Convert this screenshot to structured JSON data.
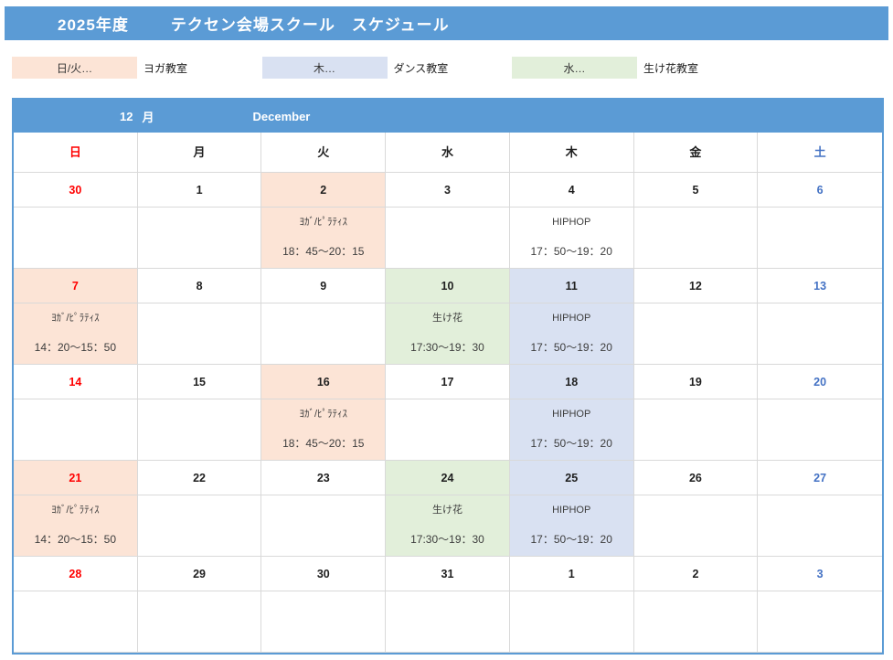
{
  "title": {
    "year": "2025年度",
    "main": "テクセン会場スクール　スケジュール"
  },
  "legend": [
    {
      "swatch_label": "日/火…",
      "class_label": "ヨガ教室",
      "color": "#FCE4D6"
    },
    {
      "swatch_label": "木…",
      "class_label": "ダンス教室",
      "color": "#D9E1F2"
    },
    {
      "swatch_label": "水…",
      "class_label": "生け花教室",
      "color": "#E2EFDA"
    }
  ],
  "month_header": {
    "number": "12",
    "suffix": "月",
    "english": "December"
  },
  "weekdays": [
    {
      "label": "日",
      "type": "sun"
    },
    {
      "label": "月",
      "type": "wd"
    },
    {
      "label": "火",
      "type": "wd"
    },
    {
      "label": "水",
      "type": "wd"
    },
    {
      "label": "木",
      "type": "wd"
    },
    {
      "label": "金",
      "type": "wd"
    },
    {
      "label": "土",
      "type": "sat"
    }
  ],
  "weeks": [
    {
      "days": [
        {
          "date": "30",
          "type": "sun",
          "bg": "none",
          "event": null
        },
        {
          "date": "1",
          "type": "wd",
          "bg": "none",
          "event": null
        },
        {
          "date": "2",
          "type": "wd",
          "bg": "yoga",
          "event": {
            "name": "ﾖｶﾞ/ﾋﾟﾗﾃｨｽ",
            "time": "18：45～20：15"
          }
        },
        {
          "date": "3",
          "type": "wd",
          "bg": "none",
          "event": null
        },
        {
          "date": "4",
          "type": "wd",
          "bg": "none",
          "event": {
            "name": "HIPHOP",
            "time": "17：50～19：20"
          }
        },
        {
          "date": "5",
          "type": "wd",
          "bg": "none",
          "event": null
        },
        {
          "date": "6",
          "type": "sat",
          "bg": "none",
          "event": null
        }
      ]
    },
    {
      "days": [
        {
          "date": "7",
          "type": "sun",
          "bg": "yoga",
          "event": {
            "name": "ﾖｶﾞ/ﾋﾟﾗﾃｨｽ",
            "time": "14：20～15：50"
          }
        },
        {
          "date": "8",
          "type": "wd",
          "bg": "none",
          "event": null
        },
        {
          "date": "9",
          "type": "wd",
          "bg": "none",
          "event": null
        },
        {
          "date": "10",
          "type": "wd",
          "bg": "flower",
          "event": {
            "name": "生け花",
            "time": "17:30～19：30"
          }
        },
        {
          "date": "11",
          "type": "wd",
          "bg": "dance",
          "event": {
            "name": "HIPHOP",
            "time": "17：50～19：20"
          }
        },
        {
          "date": "12",
          "type": "wd",
          "bg": "none",
          "event": null
        },
        {
          "date": "13",
          "type": "sat",
          "bg": "none",
          "event": null
        }
      ]
    },
    {
      "days": [
        {
          "date": "14",
          "type": "sun",
          "bg": "none",
          "event": null
        },
        {
          "date": "15",
          "type": "wd",
          "bg": "none",
          "event": null
        },
        {
          "date": "16",
          "type": "wd",
          "bg": "yoga",
          "event": {
            "name": "ﾖｶﾞ/ﾋﾟﾗﾃｨｽ",
            "time": "18：45～20：15"
          }
        },
        {
          "date": "17",
          "type": "wd",
          "bg": "none",
          "event": null
        },
        {
          "date": "18",
          "type": "wd",
          "bg": "dance",
          "event": {
            "name": "HIPHOP",
            "time": "17：50～19：20"
          }
        },
        {
          "date": "19",
          "type": "wd",
          "bg": "none",
          "event": null
        },
        {
          "date": "20",
          "type": "sat",
          "bg": "none",
          "event": null
        }
      ]
    },
    {
      "days": [
        {
          "date": "21",
          "type": "sun",
          "bg": "yoga",
          "event": {
            "name": "ﾖｶﾞ/ﾋﾟﾗﾃｨｽ",
            "time": "14：20～15：50"
          }
        },
        {
          "date": "22",
          "type": "wd",
          "bg": "none",
          "event": null
        },
        {
          "date": "23",
          "type": "wd",
          "bg": "none",
          "event": null
        },
        {
          "date": "24",
          "type": "wd",
          "bg": "flower",
          "event": {
            "name": "生け花",
            "time": "17:30～19：30"
          }
        },
        {
          "date": "25",
          "type": "wd",
          "bg": "dance",
          "event": {
            "name": "HIPHOP",
            "time": "17：50～19：20"
          }
        },
        {
          "date": "26",
          "type": "wd",
          "bg": "none",
          "event": null
        },
        {
          "date": "27",
          "type": "sat",
          "bg": "none",
          "event": null
        }
      ]
    },
    {
      "days": [
        {
          "date": "28",
          "type": "sun",
          "bg": "none",
          "event": null
        },
        {
          "date": "29",
          "type": "wd",
          "bg": "none",
          "event": null
        },
        {
          "date": "30",
          "type": "wd",
          "bg": "none",
          "event": null
        },
        {
          "date": "31",
          "type": "wd",
          "bg": "none",
          "event": null
        },
        {
          "date": "1",
          "type": "wd",
          "bg": "none",
          "event": null
        },
        {
          "date": "2",
          "type": "wd",
          "bg": "none",
          "event": null
        },
        {
          "date": "3",
          "type": "sat",
          "bg": "none",
          "event": null
        }
      ]
    }
  ],
  "colors": {
    "header_blue": "#5B9BD5",
    "yoga_bg": "#FCE4D6",
    "dance_bg": "#D9E1F2",
    "flower_bg": "#E2EFDA",
    "sunday_red": "#FF0000",
    "saturday_blue": "#4472C4",
    "gridline": "#D9D9D9"
  }
}
